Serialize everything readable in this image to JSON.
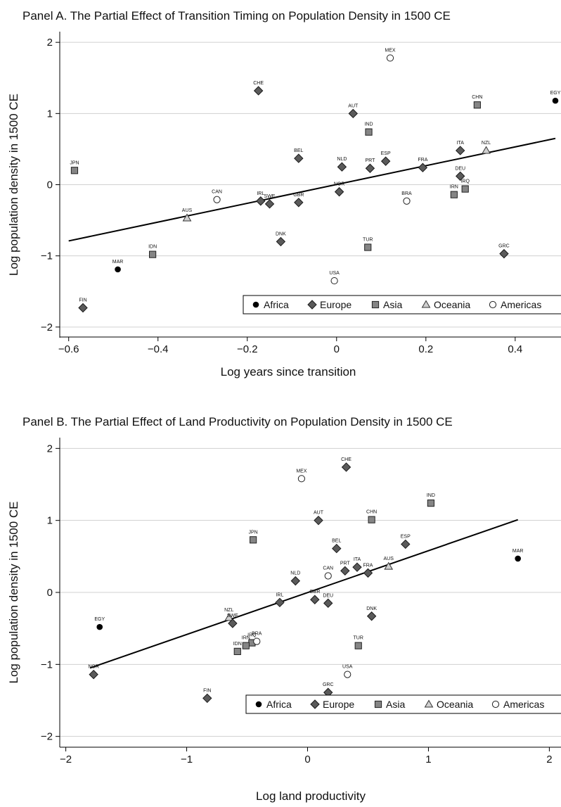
{
  "chart_data": [
    {
      "type": "scatter",
      "title": "Panel A. The Partial Effect of Transition Timing on Population Density in 1500 CE",
      "xlabel": "Log years since transition",
      "ylabel": "Log population density in 1500 CE",
      "xlim": [
        -0.62,
        0.49
      ],
      "ylim": [
        -2.15,
        2.15
      ],
      "xticks": [
        -0.6,
        -0.4,
        -0.2,
        0,
        0.2,
        0.4
      ],
      "xtick_labels": [
        "−0.6",
        "−0.4",
        "−0.2",
        "0",
        "0.2",
        "0.4"
      ],
      "yticks": [
        -2,
        -1,
        0,
        1,
        2
      ],
      "ytick_labels": [
        "−2",
        "−1",
        "0",
        "1",
        "2"
      ],
      "grid": "horizontal",
      "legend_placement": "bottom-right",
      "legend": [
        {
          "group": "Africa",
          "label": "Africa",
          "marker": "circle-filled"
        },
        {
          "group": "Europe",
          "label": "Europe",
          "marker": "diamond"
        },
        {
          "group": "Asia",
          "label": "Asia",
          "marker": "square"
        },
        {
          "group": "Oceania",
          "label": "Oceania",
          "marker": "triangle"
        },
        {
          "group": "Americas",
          "label": "Americas",
          "marker": "circle-open"
        }
      ],
      "fit_line": {
        "x": [
          -0.6,
          0.49
        ],
        "y": [
          -0.79,
          0.65
        ]
      },
      "points": [
        {
          "label": "MEX",
          "group": "Americas",
          "x": 0.12,
          "y": 1.78
        },
        {
          "label": "CHE",
          "group": "Europe",
          "x": -0.175,
          "y": 1.32
        },
        {
          "label": "CHN",
          "group": "Asia",
          "x": 0.315,
          "y": 1.12
        },
        {
          "label": "EGY",
          "group": "Africa",
          "x": 0.49,
          "y": 1.18
        },
        {
          "label": "AUT",
          "group": "Europe",
          "x": 0.037,
          "y": 1.0
        },
        {
          "label": "IND",
          "group": "Asia",
          "x": 0.072,
          "y": 0.74
        },
        {
          "label": "JPN",
          "group": "Asia",
          "x": -0.587,
          "y": 0.2
        },
        {
          "label": "BEL",
          "group": "Europe",
          "x": -0.085,
          "y": 0.37
        },
        {
          "label": "NLD",
          "group": "Europe",
          "x": 0.012,
          "y": 0.25
        },
        {
          "label": "PRT",
          "group": "Europe",
          "x": 0.075,
          "y": 0.23
        },
        {
          "label": "ESP",
          "group": "Europe",
          "x": 0.11,
          "y": 0.33
        },
        {
          "label": "FRA",
          "group": "Europe",
          "x": 0.193,
          "y": 0.24
        },
        {
          "label": "ITA",
          "group": "Europe",
          "x": 0.277,
          "y": 0.48
        },
        {
          "label": "NZL",
          "group": "Oceania",
          "x": 0.335,
          "y": 0.48
        },
        {
          "label": "DEU",
          "group": "Europe",
          "x": 0.277,
          "y": 0.12
        },
        {
          "label": "IRQ",
          "group": "Asia",
          "x": 0.288,
          "y": -0.06
        },
        {
          "label": "IRN",
          "group": "Asia",
          "x": 0.263,
          "y": -0.14
        },
        {
          "label": "BRA",
          "group": "Americas",
          "x": 0.157,
          "y": -0.23
        },
        {
          "label": "NOR",
          "group": "Europe",
          "x": 0.006,
          "y": -0.1
        },
        {
          "label": "CAN",
          "group": "Americas",
          "x": -0.268,
          "y": -0.21
        },
        {
          "label": "IRL",
          "group": "Europe",
          "x": -0.17,
          "y": -0.23
        },
        {
          "label": "SWE",
          "group": "Europe",
          "x": -0.15,
          "y": -0.27
        },
        {
          "label": "GBR",
          "group": "Europe",
          "x": -0.085,
          "y": -0.25
        },
        {
          "label": "AUS",
          "group": "Oceania",
          "x": -0.335,
          "y": -0.47
        },
        {
          "label": "DNK",
          "group": "Europe",
          "x": -0.125,
          "y": -0.8
        },
        {
          "label": "TUR",
          "group": "Asia",
          "x": 0.07,
          "y": -0.88
        },
        {
          "label": "GRC",
          "group": "Europe",
          "x": 0.375,
          "y": -0.97
        },
        {
          "label": "IDN",
          "group": "Asia",
          "x": -0.412,
          "y": -0.98
        },
        {
          "label": "MAR",
          "group": "Africa",
          "x": -0.49,
          "y": -1.19
        },
        {
          "label": "USA",
          "group": "Americas",
          "x": -0.005,
          "y": -1.35
        },
        {
          "label": "FIN",
          "group": "Europe",
          "x": -0.568,
          "y": -1.73
        }
      ]
    },
    {
      "type": "scatter",
      "title": "Panel B. The Partial Effect of Land Productivity on Population Density in 1500 CE",
      "xlabel": "Log land productivity",
      "ylabel": "Log population density in 1500 CE",
      "xlim": [
        -2.05,
        2.05
      ],
      "ylim": [
        -2.15,
        2.15
      ],
      "xticks": [
        -2,
        -1,
        0,
        1,
        2
      ],
      "xtick_labels": [
        "−2",
        "−1",
        "0",
        "1",
        "2"
      ],
      "yticks": [
        -2,
        -1,
        0,
        1,
        2
      ],
      "ytick_labels": [
        "−2",
        "−1",
        "0",
        "1",
        "2"
      ],
      "grid": "horizontal",
      "legend_placement": "bottom-right",
      "legend": [
        {
          "group": "Africa",
          "label": "Africa",
          "marker": "circle-filled"
        },
        {
          "group": "Europe",
          "label": "Europe",
          "marker": "diamond"
        },
        {
          "group": "Asia",
          "label": "Asia",
          "marker": "square"
        },
        {
          "group": "Oceania",
          "label": "Oceania",
          "marker": "triangle"
        },
        {
          "group": "Americas",
          "label": "Americas",
          "marker": "circle-open"
        }
      ],
      "fit_line": {
        "x": [
          -1.8,
          1.74
        ],
        "y": [
          -1.05,
          1.01
        ]
      },
      "points": [
        {
          "label": "CHE",
          "group": "Europe",
          "x": 0.32,
          "y": 1.74
        },
        {
          "label": "MEX",
          "group": "Americas",
          "x": -0.05,
          "y": 1.58
        },
        {
          "label": "IND",
          "group": "Asia",
          "x": 1.02,
          "y": 1.24
        },
        {
          "label": "AUT",
          "group": "Europe",
          "x": 0.09,
          "y": 1.0
        },
        {
          "label": "CHN",
          "group": "Asia",
          "x": 0.53,
          "y": 1.01
        },
        {
          "label": "JPN",
          "group": "Asia",
          "x": -0.45,
          "y": 0.73
        },
        {
          "label": "BEL",
          "group": "Europe",
          "x": 0.24,
          "y": 0.61
        },
        {
          "label": "ESP",
          "group": "Europe",
          "x": 0.81,
          "y": 0.67
        },
        {
          "label": "MAR",
          "group": "Africa",
          "x": 1.74,
          "y": 0.47
        },
        {
          "label": "AUS",
          "group": "Oceania",
          "x": 0.67,
          "y": 0.36
        },
        {
          "label": "ITA",
          "group": "Europe",
          "x": 0.41,
          "y": 0.35
        },
        {
          "label": "PRT",
          "group": "Europe",
          "x": 0.31,
          "y": 0.3
        },
        {
          "label": "FRA",
          "group": "Europe",
          "x": 0.5,
          "y": 0.27
        },
        {
          "label": "CAN",
          "group": "Americas",
          "x": 0.17,
          "y": 0.23
        },
        {
          "label": "NLD",
          "group": "Europe",
          "x": -0.1,
          "y": 0.16
        },
        {
          "label": "IRL",
          "group": "Europe",
          "x": -0.23,
          "y": -0.14
        },
        {
          "label": "GBR",
          "group": "Europe",
          "x": 0.06,
          "y": -0.1
        },
        {
          "label": "DEU",
          "group": "Europe",
          "x": 0.17,
          "y": -0.15
        },
        {
          "label": "DNK",
          "group": "Europe",
          "x": 0.53,
          "y": -0.33
        },
        {
          "label": "EGY",
          "group": "Africa",
          "x": -1.72,
          "y": -0.48
        },
        {
          "label": "NZL",
          "group": "Oceania",
          "x": -0.65,
          "y": -0.35
        },
        {
          "label": "SWE",
          "group": "Europe",
          "x": -0.62,
          "y": -0.43
        },
        {
          "label": "IRQ",
          "group": "Asia",
          "x": -0.46,
          "y": -0.7
        },
        {
          "label": "BRA",
          "group": "Americas",
          "x": -0.42,
          "y": -0.68
        },
        {
          "label": "IRN",
          "group": "Asia",
          "x": -0.51,
          "y": -0.74
        },
        {
          "label": "IDN",
          "group": "Asia",
          "x": -0.58,
          "y": -0.82
        },
        {
          "label": "TUR",
          "group": "Asia",
          "x": 0.42,
          "y": -0.74
        },
        {
          "label": "USA",
          "group": "Americas",
          "x": 0.33,
          "y": -1.14
        },
        {
          "label": "NOR",
          "group": "Europe",
          "x": -1.77,
          "y": -1.14
        },
        {
          "label": "FIN",
          "group": "Europe",
          "x": -0.83,
          "y": -1.47
        },
        {
          "label": "GRC",
          "group": "Europe",
          "x": 0.17,
          "y": -1.39
        }
      ]
    }
  ]
}
